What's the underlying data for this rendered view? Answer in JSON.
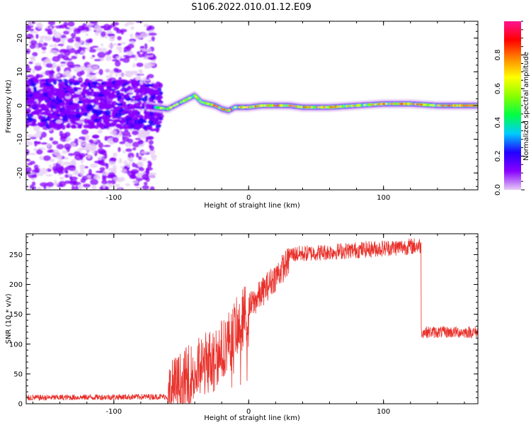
{
  "title": "S106.2022.010.01.12.E09",
  "chart_data": [
    {
      "type": "heatmap",
      "xlabel": "Height of straight line (km)",
      "ylabel": "Frequency (Hz)",
      "xlim": [
        -165,
        170
      ],
      "ylim": [
        -25,
        25
      ],
      "xticks": [
        -100,
        0,
        100
      ],
      "yticks": [
        -20,
        -10,
        0,
        10,
        20
      ],
      "colorbar": {
        "label": "Normalized spectral amplitude",
        "ticks": [
          0.0,
          0.2,
          0.4,
          0.6,
          0.8
        ],
        "range": [
          0,
          1
        ],
        "colors": [
          "#e6ccf5",
          "#8800ff",
          "#2200ff",
          "#00ccff",
          "#00ff44",
          "#88ff00",
          "#ffff00",
          "#ff8800",
          "#ff0000",
          "#ff1493"
        ]
      },
      "ridge": {
        "x": [
          -165,
          -140,
          -120,
          -100,
          -80,
          -70,
          -60,
          -50,
          -45,
          -40,
          -35,
          -30,
          -25,
          -20,
          -15,
          -10,
          0,
          10,
          20,
          30,
          40,
          60,
          80,
          100,
          120,
          140,
          170
        ],
        "y": [
          1,
          0.5,
          0.5,
          0.5,
          0,
          -0.5,
          -1,
          1,
          2,
          3,
          1,
          0.5,
          0,
          -1,
          -1.5,
          -0.5,
          -0.5,
          0,
          0,
          0,
          -0.5,
          -0.5,
          0,
          0.5,
          0.5,
          0,
          0
        ]
      }
    },
    {
      "type": "line",
      "color": "#e8302a",
      "xlabel": "Height of straight line (km)",
      "ylabel": "SNR (10 * v/v)",
      "xlim": [
        -165,
        170
      ],
      "ylim": [
        0,
        285
      ],
      "xticks": [
        -100,
        0,
        100
      ],
      "yticks": [
        0,
        50,
        100,
        150,
        200,
        250
      ],
      "segments": [
        {
          "x": [
            -165,
            -60
          ],
          "y": [
            10,
            12
          ],
          "noise": 5
        },
        {
          "x": [
            -60,
            -20
          ],
          "y": [
            15,
            90
          ],
          "noise": 55
        },
        {
          "x": [
            -20,
            0
          ],
          "y": [
            90,
            160
          ],
          "noise": 50
        },
        {
          "x": [
            0,
            30
          ],
          "y": [
            160,
            240
          ],
          "noise": 25
        },
        {
          "x": [
            30,
            128
          ],
          "y": [
            250,
            265
          ],
          "noise": 14
        },
        {
          "x": [
            128,
            170
          ],
          "y": [
            120,
            120
          ],
          "noise": 10
        }
      ]
    }
  ]
}
